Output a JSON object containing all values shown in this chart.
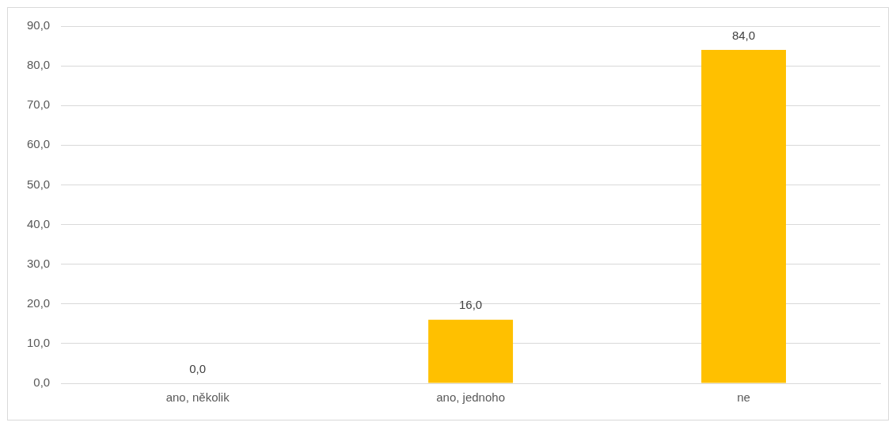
{
  "chart_data": {
    "type": "bar",
    "categories": [
      "ano, několik",
      "ano, jednoho",
      "ne"
    ],
    "values": [
      0,
      16,
      84
    ],
    "color": "#ffc000",
    "value_labels": [
      "0,0",
      "16,0",
      "84,0"
    ],
    "ylim": [
      0,
      90
    ],
    "yticks": [
      {
        "value": 0,
        "label": "0,0"
      },
      {
        "value": 10,
        "label": "10,0"
      },
      {
        "value": 20,
        "label": "20,0"
      },
      {
        "value": 30,
        "label": "30,0"
      },
      {
        "value": 40,
        "label": "40,0"
      },
      {
        "value": 50,
        "label": "50,0"
      },
      {
        "value": 60,
        "label": "60,0"
      },
      {
        "value": 70,
        "label": "70,0"
      },
      {
        "value": 80,
        "label": "80,0"
      },
      {
        "value": 90,
        "label": "90,0"
      }
    ],
    "grid": "y",
    "legend": false
  }
}
